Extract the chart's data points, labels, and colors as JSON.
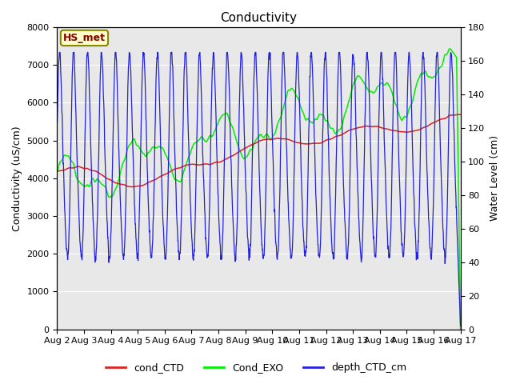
{
  "title": "Conductivity",
  "ylabel_left": "Conductivity (uS/cm)",
  "ylabel_right": "Water Level (cm)",
  "ylim_left": [
    0,
    8000
  ],
  "ylim_right": [
    0,
    180
  ],
  "yticks_left": [
    0,
    1000,
    2000,
    3000,
    4000,
    5000,
    6000,
    7000,
    8000
  ],
  "yticks_right": [
    0,
    20,
    40,
    60,
    80,
    100,
    120,
    140,
    160,
    180
  ],
  "fig_facecolor": "#ffffff",
  "ax_facecolor": "#e8e8e8",
  "annotation_text": "HS_met",
  "annotation_facecolor": "#ffffcc",
  "annotation_edgecolor": "#888800",
  "annotation_textcolor": "#880000",
  "legend_labels": [
    "cond_CTD",
    "Cond_EXO",
    "depth_CTD_cm"
  ],
  "line_colors": [
    "#dd2222",
    "#00ee00",
    "#2222dd"
  ],
  "x_tick_labels": [
    "Aug 2",
    "Aug 3",
    "Aug 4",
    "Aug 5",
    "Aug 6",
    "Aug 7",
    "Aug 8",
    "Aug 9",
    "Aug 10",
    "Aug 11",
    "Aug 12",
    "Aug 13",
    "Aug 14",
    "Aug 15",
    "Aug 16",
    "Aug 17"
  ],
  "grid_color": "#ffffff",
  "title_fontsize": 11,
  "label_fontsize": 9,
  "tick_fontsize": 8
}
